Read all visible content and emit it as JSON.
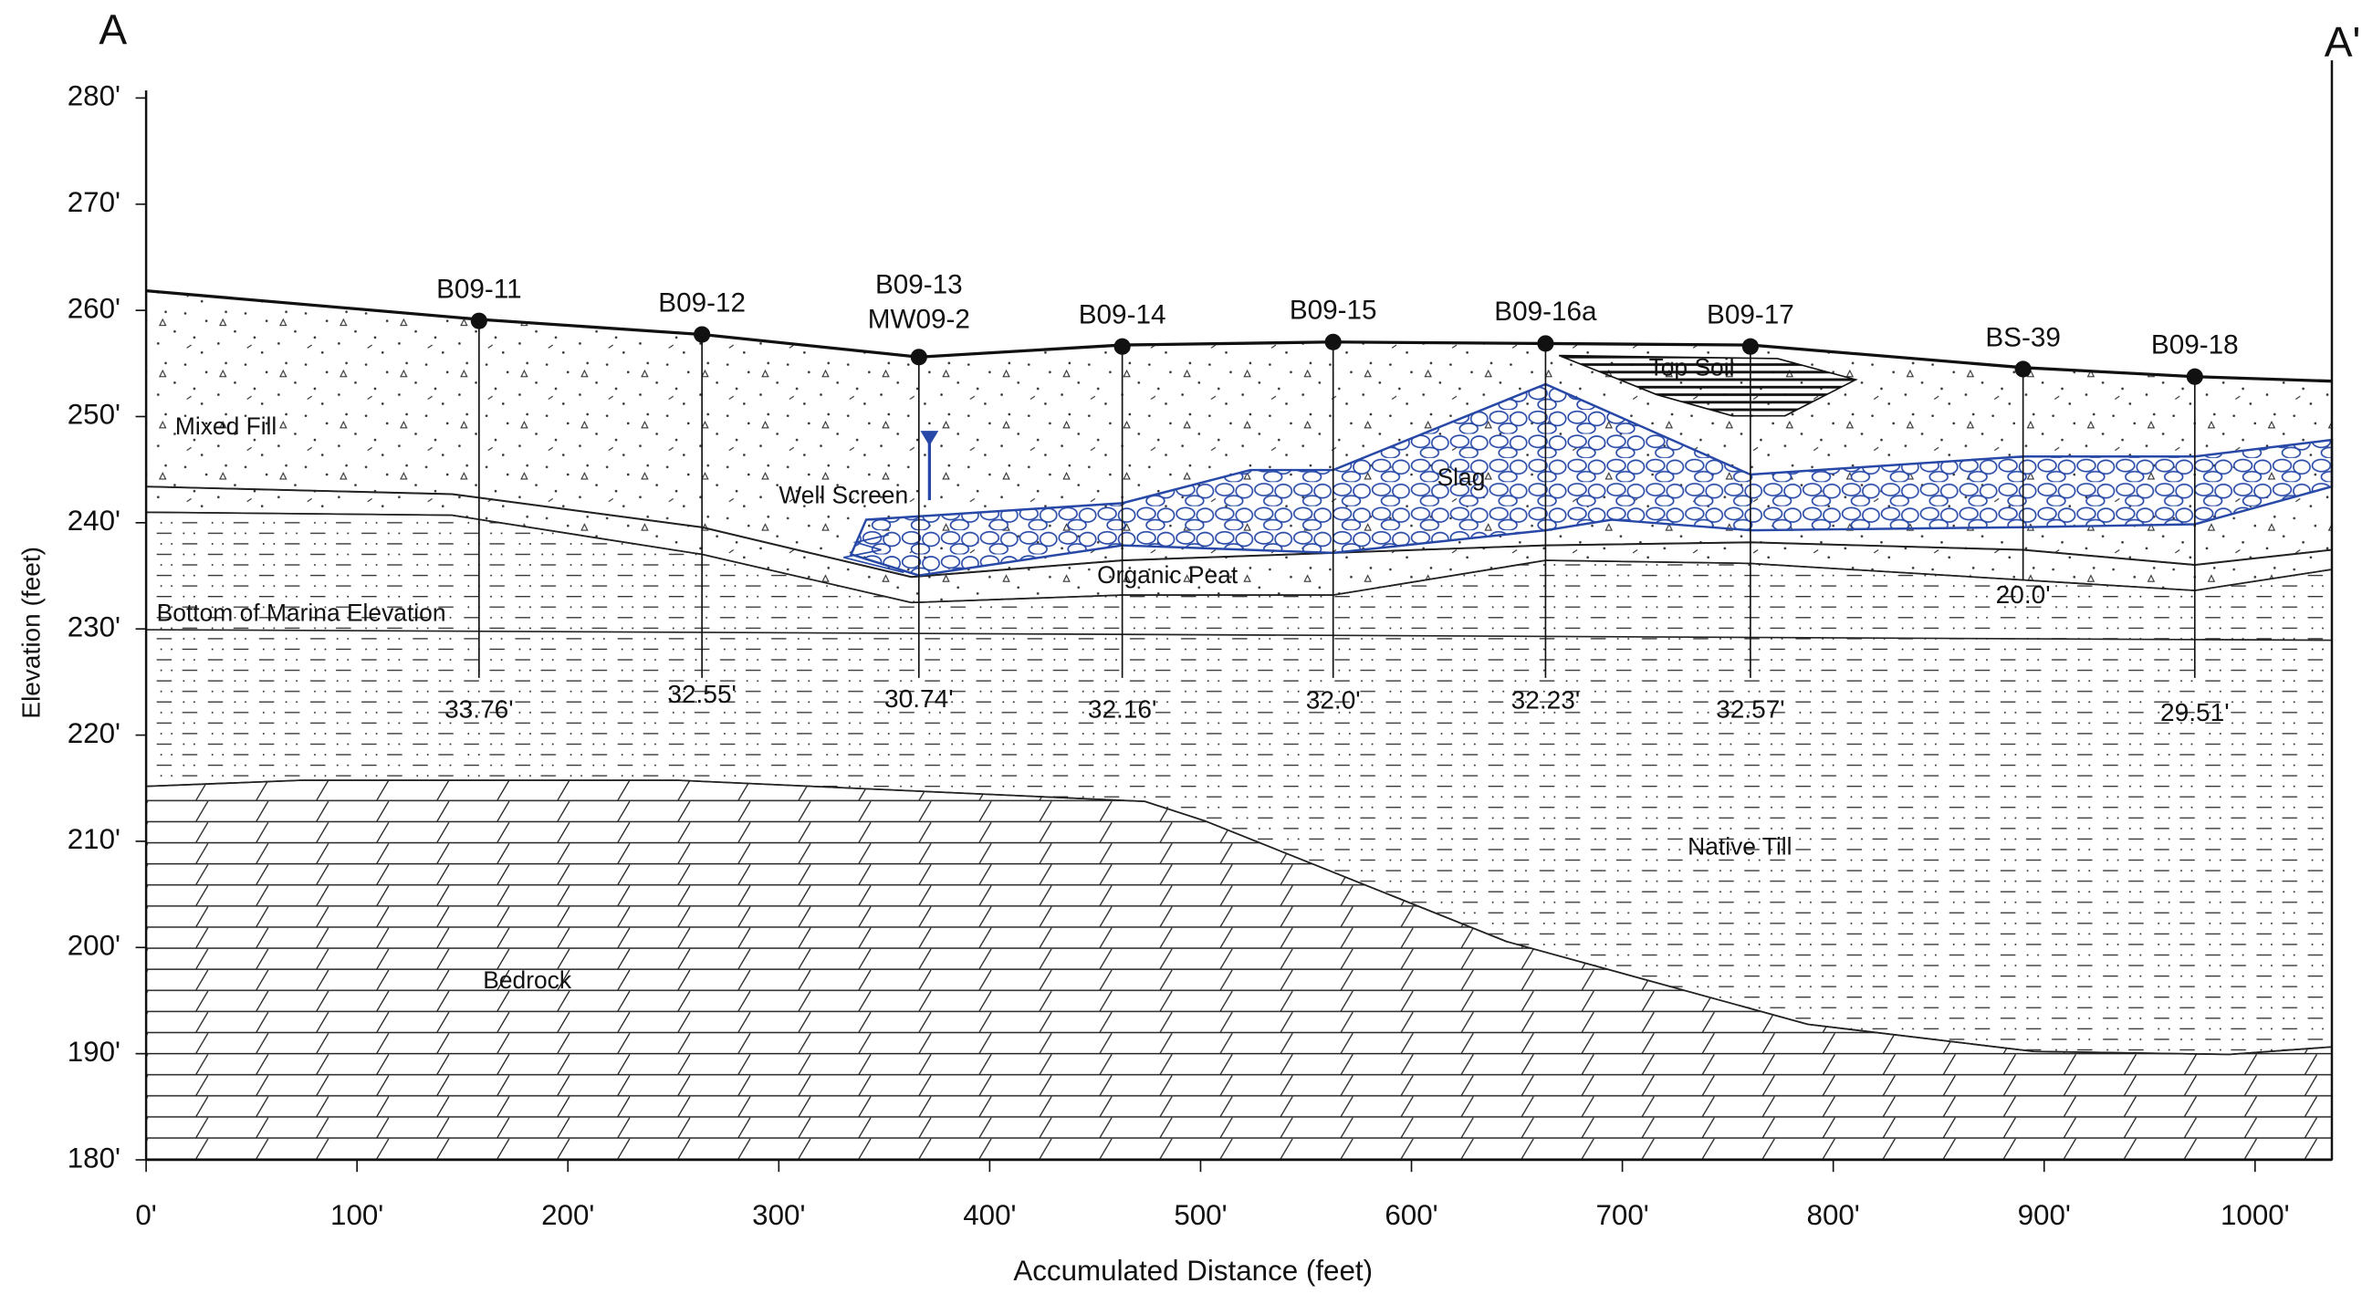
{
  "header": {
    "left_label": "A",
    "right_label": "A'"
  },
  "axes": {
    "y_title": "Elevation (feet)",
    "x_title": "Accumulated Distance (feet)",
    "yticks": [
      {
        "value": 280,
        "label": "280'"
      },
      {
        "value": 270,
        "label": "270'"
      },
      {
        "value": 260,
        "label": "260'"
      },
      {
        "value": 250,
        "label": "250'"
      },
      {
        "value": 240,
        "label": "240'"
      },
      {
        "value": 230,
        "label": "230'"
      },
      {
        "value": 220,
        "label": "220'"
      },
      {
        "value": 210,
        "label": "210'"
      },
      {
        "value": 200,
        "label": "200'"
      },
      {
        "value": 190,
        "label": "190'"
      },
      {
        "value": 180,
        "label": "180'"
      }
    ],
    "xticks": [
      {
        "value": 0,
        "label": "0'"
      },
      {
        "value": 100,
        "label": "100'"
      },
      {
        "value": 200,
        "label": "200'"
      },
      {
        "value": 300,
        "label": "300'"
      },
      {
        "value": 400,
        "label": "400'"
      },
      {
        "value": 500,
        "label": "500'"
      },
      {
        "value": 600,
        "label": "600'"
      },
      {
        "value": 700,
        "label": "700'"
      },
      {
        "value": 800,
        "label": "800'"
      },
      {
        "value": 900,
        "label": "900'"
      },
      {
        "value": 1000,
        "label": "1000'"
      }
    ]
  },
  "layers": [
    "Mixed Fill",
    "Well Screen",
    "Slag",
    "Top Soil",
    "Organic Peat",
    "Bottom of Marina Elevation",
    "Native Till",
    "Bedrock"
  ],
  "borings": [
    {
      "name": "B09-11",
      "depth": "33.76'"
    },
    {
      "name": "B09-12",
      "depth": "32.55'"
    },
    {
      "name": "B09-13",
      "well": "MW09-2",
      "depth": "30.74'"
    },
    {
      "name": "B09-14",
      "depth": "32.16'"
    },
    {
      "name": "B09-15",
      "depth": "32.0'"
    },
    {
      "name": "B09-16a",
      "depth": "32.23'"
    },
    {
      "name": "B09-17",
      "depth": "32.57'"
    },
    {
      "name": "BS-39",
      "depth": "20.0'"
    },
    {
      "name": "B09-18",
      "depth": "29.51'"
    }
  ]
}
